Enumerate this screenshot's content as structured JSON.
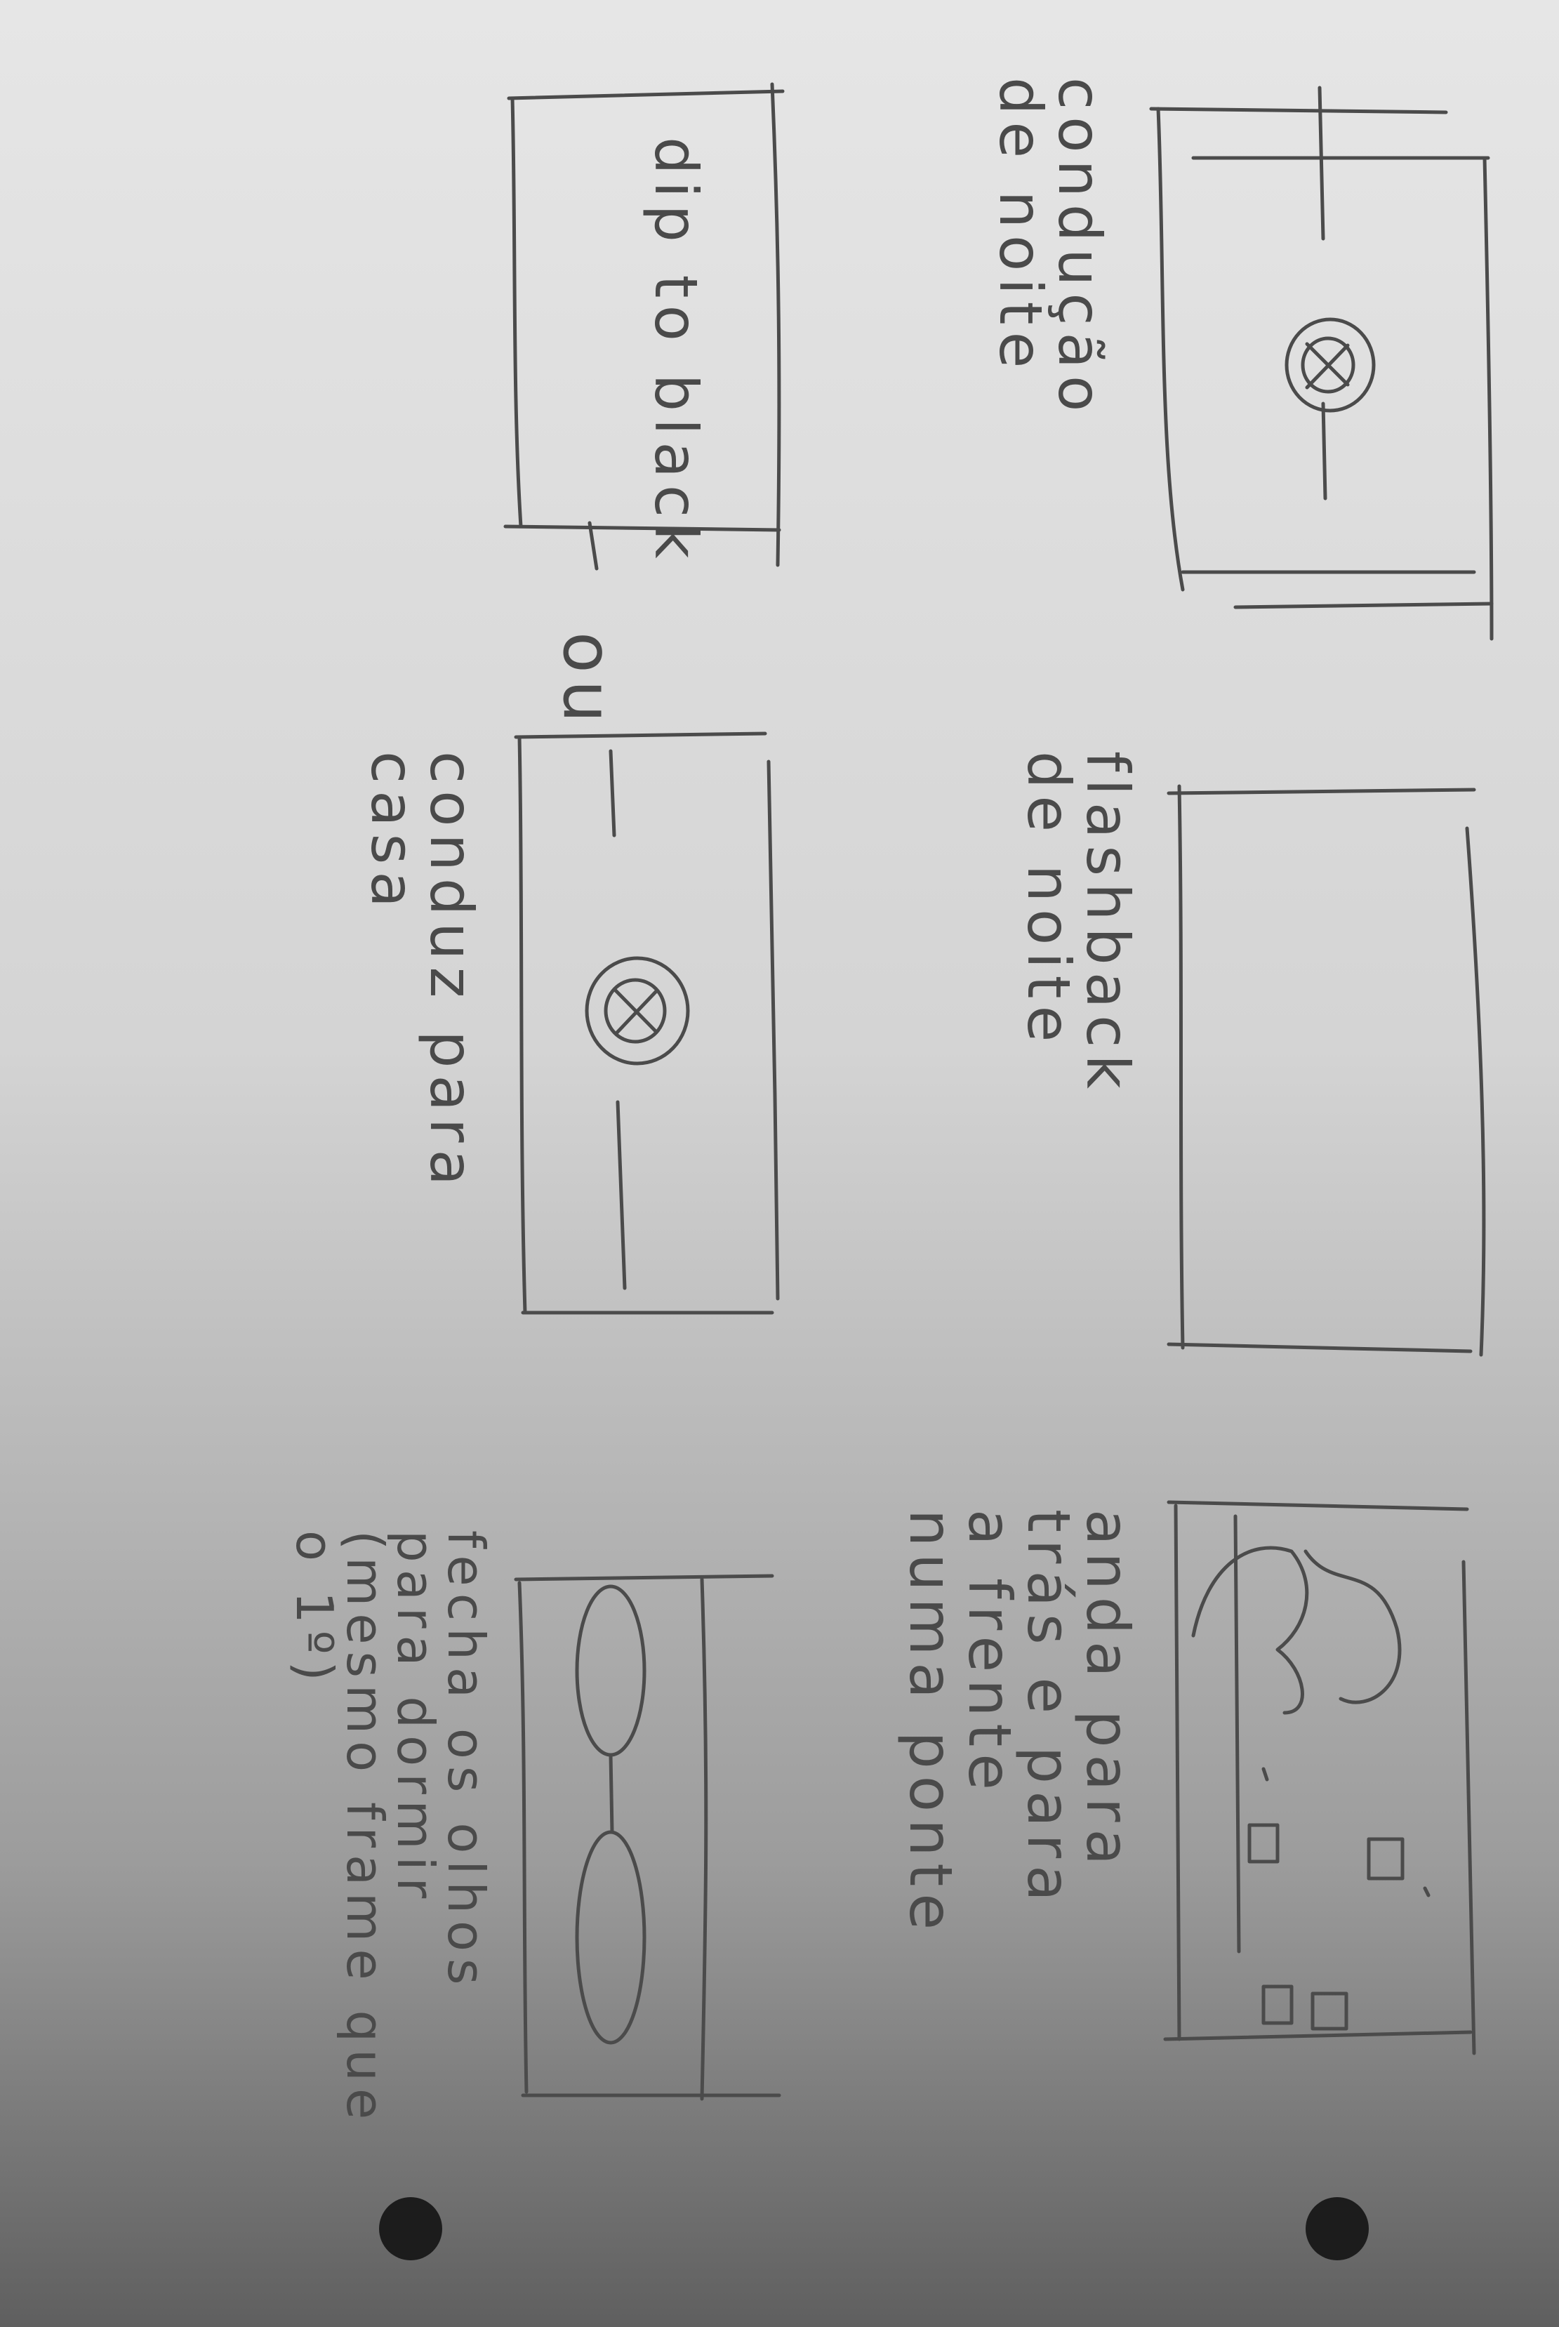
{
  "sheet": {
    "captions": {
      "frame1": [
        "condução",
        "de noite"
      ],
      "frame2": [
        "flashback",
        "de noite"
      ],
      "frame3": [
        "anda para",
        "trás e para",
        "a frente",
        "numa ponte"
      ],
      "frame4": [
        "dip to black"
      ],
      "frame5": [
        "conduz para",
        "casa"
      ],
      "frame6": [
        "fecha os olhos",
        "para dormir",
        "(mesmo frame que",
        "o 1º)"
      ],
      "connector": "ou"
    },
    "icons": [
      "steering-wheel-icon",
      "closed-eyes-icon",
      "trees-icon",
      "punch-hole-icon"
    ]
  }
}
